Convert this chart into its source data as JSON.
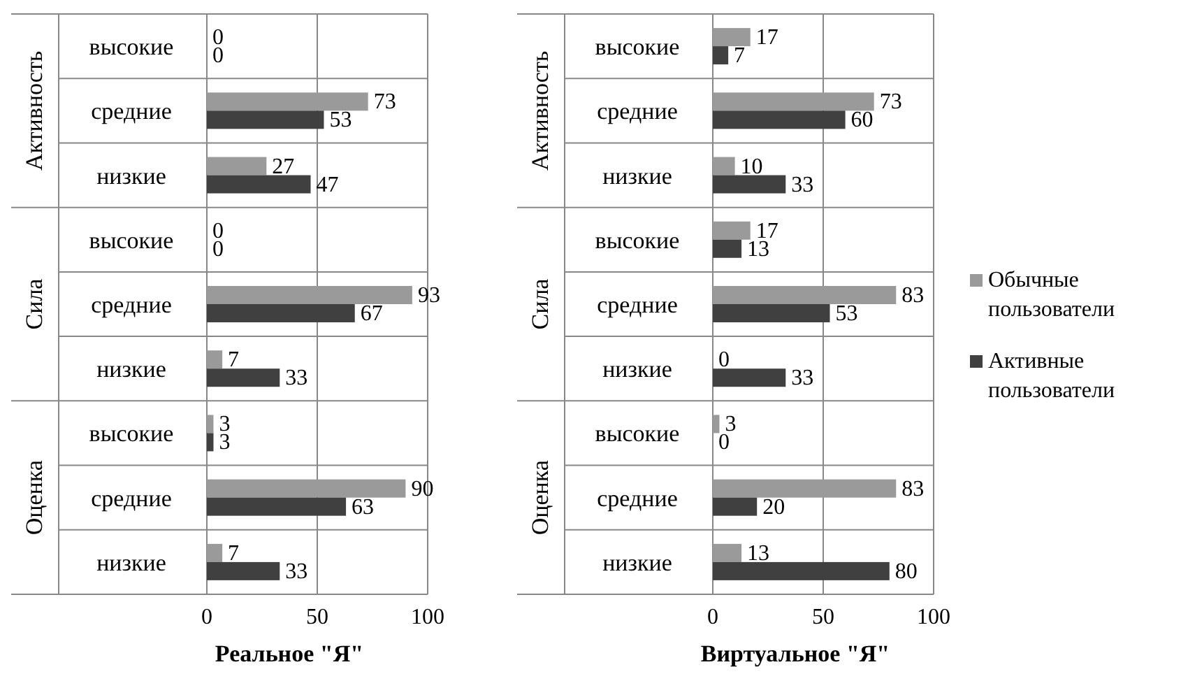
{
  "chart_data": [
    {
      "type": "bar",
      "orientation": "horizontal",
      "xlabel": "Реальное \"Я\"",
      "categories": [
        "высокие",
        "средние",
        "низкие",
        "высокие",
        "средние",
        "низкие",
        "высокие",
        "средние",
        "низкие"
      ],
      "annotations": [
        "Активность",
        "Сила",
        "Оценка"
      ],
      "series": [
        {
          "color": "#9a9a9a",
          "values": [
            0,
            73,
            27,
            0,
            93,
            7,
            3,
            90,
            7
          ]
        },
        {
          "color": "#404040",
          "values": [
            0,
            53,
            47,
            0,
            67,
            33,
            3,
            63,
            33
          ]
        }
      ],
      "xlim": [
        0,
        100
      ],
      "xticks": [
        0,
        50,
        100
      ],
      "grid": "x",
      "data_labels": true
    },
    {
      "type": "bar",
      "orientation": "horizontal",
      "xlabel": "Виртуальное \"Я\"",
      "categories": [
        "высокие",
        "средние",
        "низкие",
        "высокие",
        "средние",
        "низкие",
        "высокие",
        "средние",
        "низкие"
      ],
      "annotations": [
        "Активность",
        "Сила",
        "Оценка"
      ],
      "series": [
        {
          "name": "Обычные пользователи",
          "color": "#9a9a9a",
          "values": [
            17,
            73,
            10,
            17,
            83,
            0,
            3,
            83,
            13
          ]
        },
        {
          "name": "Активные пользователи",
          "color": "#404040",
          "values": [
            7,
            60,
            33,
            13,
            53,
            33,
            0,
            20,
            80
          ]
        }
      ],
      "xlim": [
        0,
        100
      ],
      "xticks": [
        0,
        50,
        100
      ],
      "grid": "x",
      "legend": "right",
      "data_labels": true
    }
  ]
}
